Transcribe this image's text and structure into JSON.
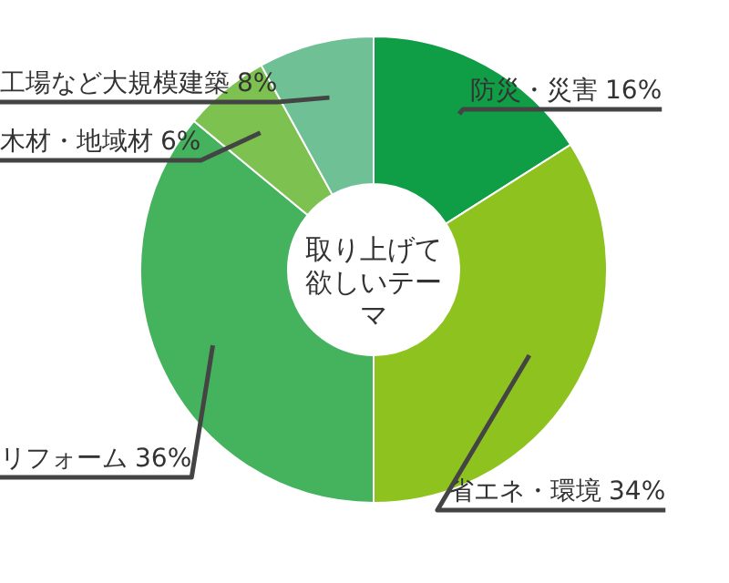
{
  "chart_data": {
    "type": "donut",
    "title": "取り上げて欲しいテーマ",
    "categories": [
      "防災・災害",
      "省エネ・環境",
      "リフォーム",
      "木材・地域材",
      "工場など大規模建築"
    ],
    "values": [
      16,
      34,
      36,
      6,
      8
    ],
    "value_labels": [
      "16%",
      "34%",
      "36%",
      "6%",
      "8%"
    ],
    "colors": [
      "#0f9e45",
      "#8dc21f",
      "#45b35e",
      "#7dc150",
      "#6fc195"
    ]
  }
}
